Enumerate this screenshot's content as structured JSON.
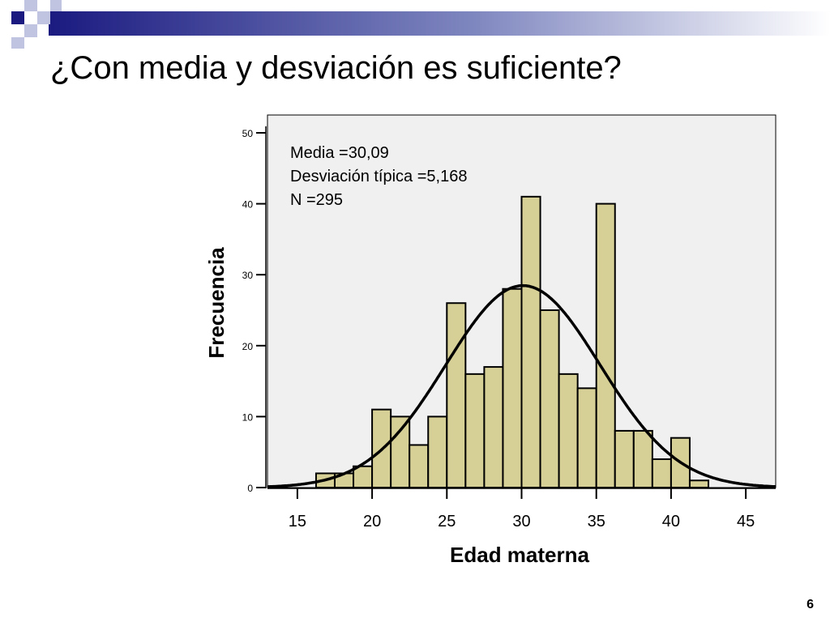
{
  "slide": {
    "title": "¿Con media y desviación es suficiente?",
    "page_number": "6",
    "accent_colors": [
      "#1a1a80",
      "#9aa0d0",
      "#ffffff"
    ]
  },
  "chart_data": {
    "type": "bar",
    "xlabel": "Edad materna",
    "ylabel": "Frecuencia",
    "xlim": [
      13,
      47
    ],
    "ylim": [
      0,
      50
    ],
    "x_ticks": [
      15,
      20,
      25,
      30,
      35,
      40,
      45
    ],
    "y_ticks": [
      0,
      10,
      20,
      30,
      40,
      50
    ],
    "bin_width": 1.25,
    "bins": [
      {
        "start": 16.25,
        "value": 2
      },
      {
        "start": 17.5,
        "value": 2
      },
      {
        "start": 18.75,
        "value": 3
      },
      {
        "start": 20.0,
        "value": 11
      },
      {
        "start": 21.25,
        "value": 10
      },
      {
        "start": 22.5,
        "value": 6
      },
      {
        "start": 23.75,
        "value": 10
      },
      {
        "start": 25.0,
        "value": 26
      },
      {
        "start": 26.25,
        "value": 16
      },
      {
        "start": 27.5,
        "value": 17
      },
      {
        "start": 28.75,
        "value": 28
      },
      {
        "start": 30.0,
        "value": 41
      },
      {
        "start": 31.25,
        "value": 25
      },
      {
        "start": 32.5,
        "value": 16
      },
      {
        "start": 33.75,
        "value": 14
      },
      {
        "start": 35.0,
        "value": 40
      },
      {
        "start": 36.25,
        "value": 8
      },
      {
        "start": 37.5,
        "value": 8
      },
      {
        "start": 38.75,
        "value": 4
      },
      {
        "start": 40.0,
        "value": 7
      },
      {
        "start": 41.25,
        "value": 1
      }
    ],
    "stats_lines": [
      "Media =30,09",
      "Desviación típica =5,168",
      "N =295"
    ],
    "normal_curve": {
      "mean": 30.09,
      "sd": 5.168,
      "n": 295
    },
    "bar_color": "#d6cf96",
    "plot_background": "#f0f0f0",
    "grid": false
  }
}
